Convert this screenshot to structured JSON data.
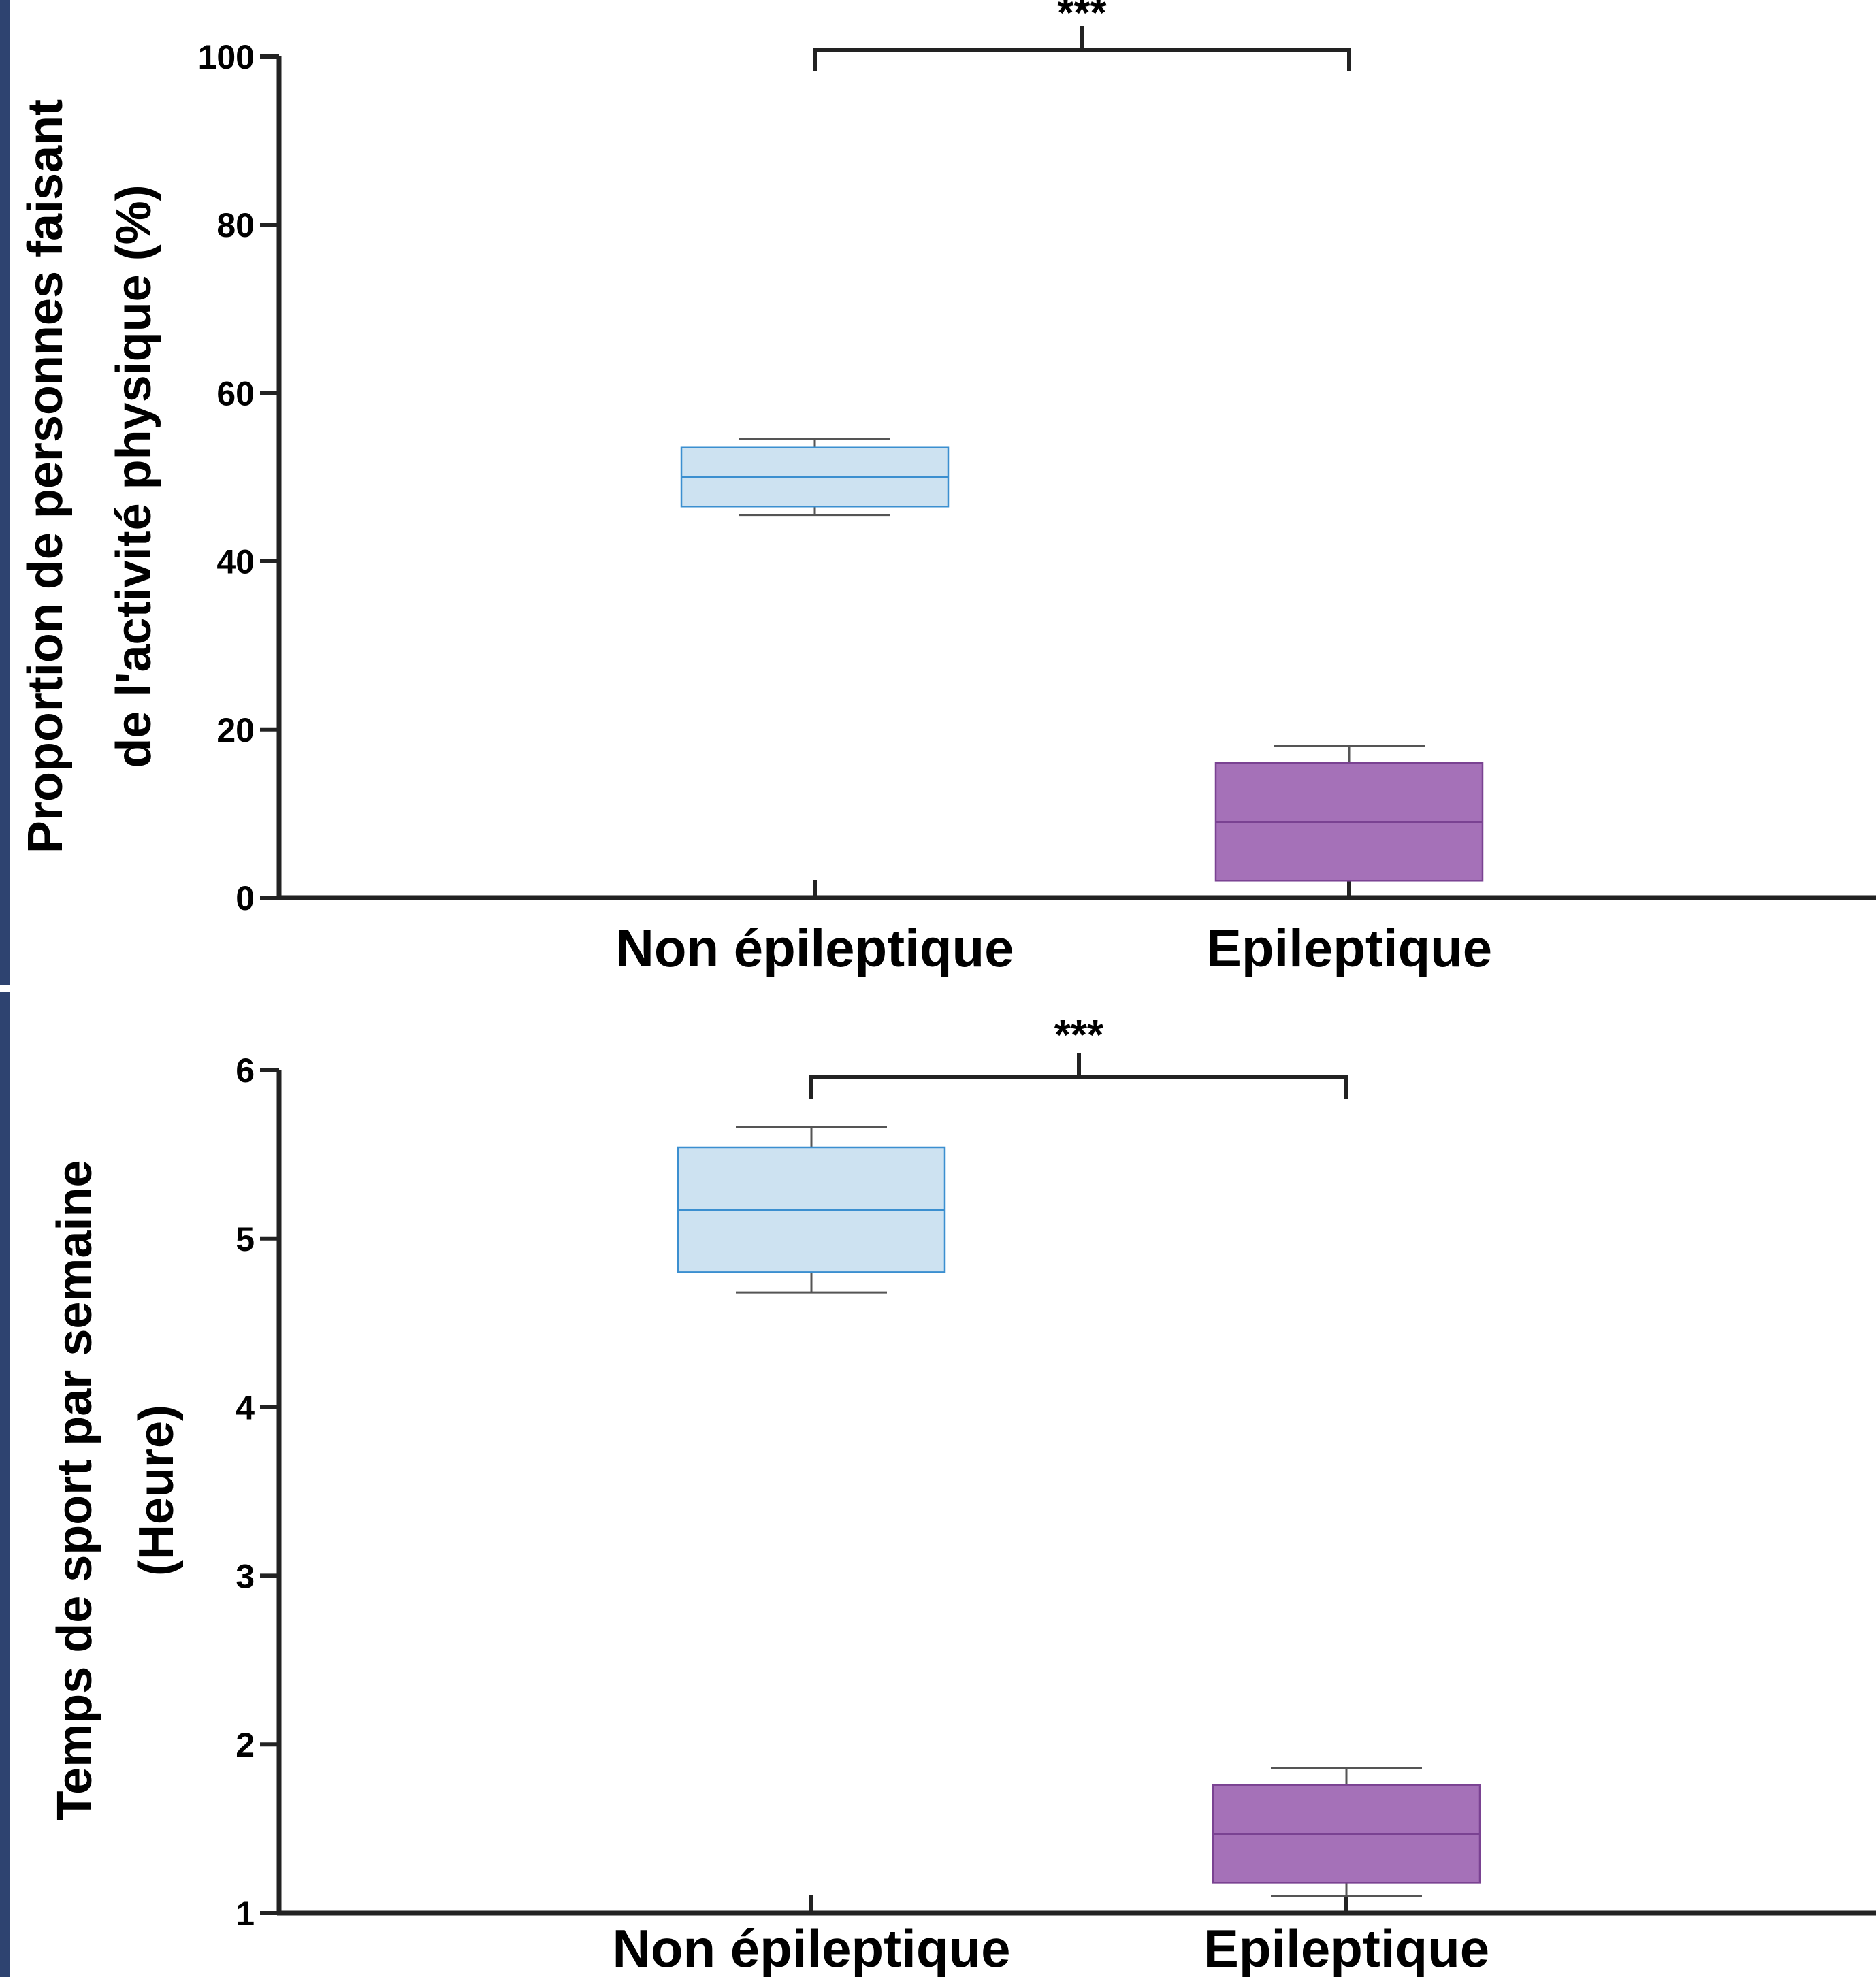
{
  "chart_data": [
    {
      "type": "box",
      "title": "",
      "xlabel": "",
      "ylabel_lines": [
        "Proportion de personnes faisant",
        "de l'activité physique (%)"
      ],
      "categories": [
        "Non épileptique",
        "Epileptique"
      ],
      "ylim": [
        0,
        100
      ],
      "yticks": [
        0,
        20,
        40,
        60,
        80,
        100
      ],
      "grid": false,
      "boxes": [
        {
          "category": "Non épileptique",
          "whisker_low": 45.5,
          "q1": 46.5,
          "median": 50,
          "q3": 53.5,
          "whisker_high": 54.5,
          "fill": "#cde2f1",
          "stroke": "#3b8fd0"
        },
        {
          "category": "Epileptique",
          "whisker_low": 2,
          "q1": 2,
          "median": 9,
          "q3": 16,
          "whisker_high": 18,
          "fill": "#a571b8",
          "stroke": "#7a4292"
        }
      ],
      "significance": {
        "label": "***",
        "between": [
          "Non épileptique",
          "Epileptique"
        ]
      }
    },
    {
      "type": "box",
      "title": "",
      "xlabel": "",
      "ylabel_lines": [
        "Temps de sport par semaine",
        "(Heure)"
      ],
      "categories": [
        "Non épileptique",
        "Epileptique"
      ],
      "ylim": [
        1,
        6
      ],
      "yticks": [
        1,
        2,
        3,
        4,
        5,
        6
      ],
      "grid": false,
      "boxes": [
        {
          "category": "Non épileptique",
          "whisker_low": 4.68,
          "q1": 4.8,
          "median": 5.17,
          "q3": 5.54,
          "whisker_high": 5.66,
          "fill": "#cde2f1",
          "stroke": "#3b8fd0"
        },
        {
          "category": "Epileptique",
          "whisker_low": 1.1,
          "q1": 1.18,
          "median": 1.47,
          "q3": 1.76,
          "whisker_high": 1.86,
          "fill": "#a571b8",
          "stroke": "#7a4292"
        }
      ],
      "significance": {
        "label": "***",
        "between": [
          "Non épileptique",
          "Epileptique"
        ]
      }
    }
  ],
  "colors": {
    "axis": "#222222",
    "left_border": "#2e4370"
  }
}
